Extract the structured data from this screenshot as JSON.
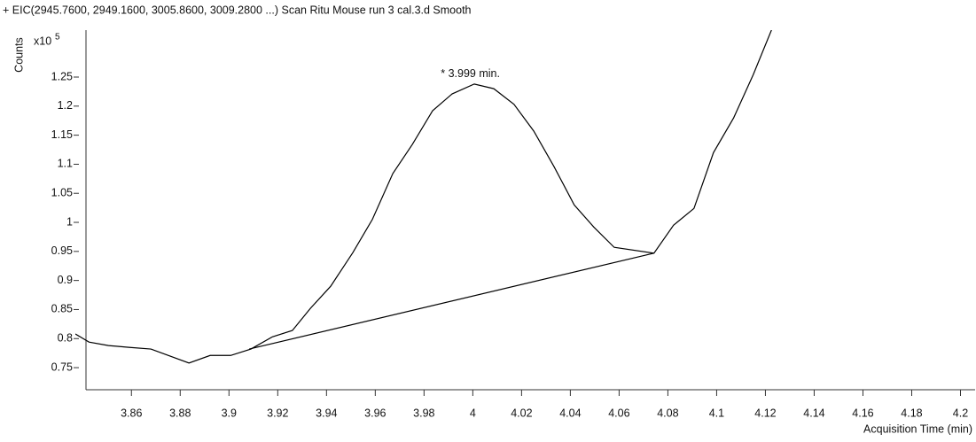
{
  "chart_data": {
    "type": "line",
    "title": "+ EIC(2945.7600, 2949.1600, 3005.8600, 3009.2800 ...) Scan Ritu Mouse run 3 cal.3.d  Smooth",
    "y_label": "Counts",
    "y_multiplier": "x10",
    "y_exponent": "5",
    "x_label": "Acquisition Time (min)",
    "annotation": {
      "text": "* 3.999 min.",
      "x": 3.999,
      "y": 1.238
    },
    "series": [
      {
        "color": "#000000",
        "x": [
          3.837,
          3.8426,
          3.8506,
          3.8589,
          3.868,
          3.8836,
          3.8923,
          3.9007,
          3.909,
          3.9178,
          3.926,
          3.9334,
          3.9417,
          3.9508,
          3.9588,
          3.9672,
          3.9752,
          3.9835,
          3.9915,
          4.0006,
          4.0086,
          4.0169,
          4.025,
          4.0333,
          4.0416,
          4.0496,
          4.058,
          4.0743,
          4.0823,
          4.0907,
          4.0987,
          4.107,
          4.115,
          4.1226
        ],
        "values": [
          0.808,
          0.794,
          0.788,
          0.785,
          0.782,
          0.758,
          0.771,
          0.771,
          0.782,
          0.803,
          0.814,
          0.852,
          0.89,
          0.948,
          1.005,
          1.084,
          1.134,
          1.192,
          1.221,
          1.238,
          1.23,
          1.203,
          1.157,
          1.096,
          1.03,
          0.992,
          0.957,
          0.947,
          0.995,
          1.024,
          1.12,
          1.18,
          1.254,
          1.332
        ]
      }
    ],
    "baseline": {
      "color": "#000000",
      "x": [
        3.9083,
        4.0743
      ],
      "values": [
        0.782,
        0.947
      ]
    },
    "xlim": [
      3.837,
      4.206
    ],
    "ylim": [
      0.712,
      1.33
    ],
    "xticks": [
      3.86,
      3.88,
      3.9,
      3.92,
      3.94,
      3.96,
      3.98,
      4,
      4.02,
      4.04,
      4.06,
      4.08,
      4.1,
      4.12,
      4.14,
      4.16,
      4.18,
      4.2
    ],
    "yticks": [
      0.75,
      0.8,
      0.85,
      0.9,
      0.95,
      1,
      1.05,
      1.1,
      1.15,
      1.2,
      1.25
    ],
    "grid": false
  }
}
